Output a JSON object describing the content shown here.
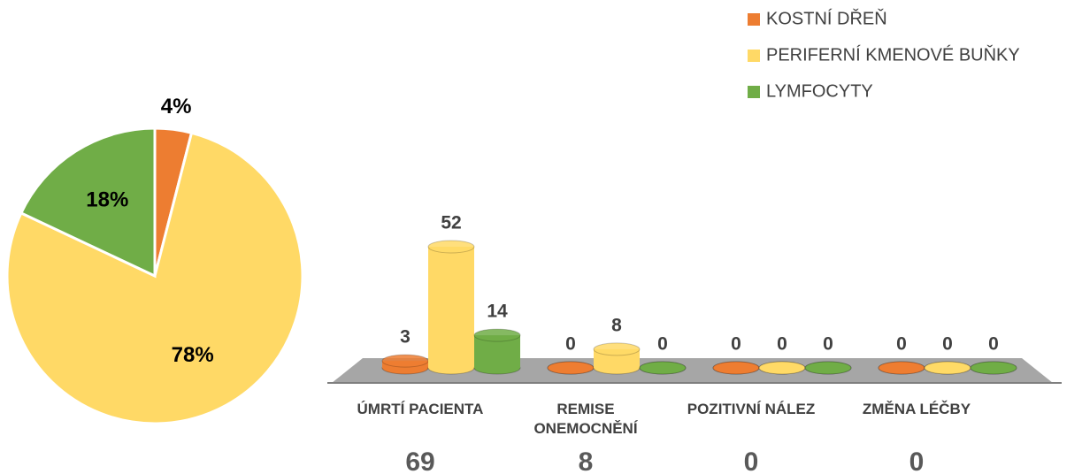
{
  "chart_data": [
    {
      "type": "pie",
      "values": [
        4,
        78,
        18
      ],
      "value_labels": [
        "4%",
        "78%",
        "18%"
      ],
      "colors": [
        "#ed7d31",
        "#ffd966",
        "#70ad47"
      ]
    },
    {
      "type": "bar3d",
      "categories": [
        "ÚMRTÍ PACIENTA",
        "REMISE ONEMOCNĚNÍ",
        "POZITIVNÍ NÁLEZ",
        "ZMĚNA LÉČBY"
      ],
      "series": [
        {
          "name": "KOSTNÍ DŘEŇ",
          "color": "#ed7d31",
          "values": [
            3,
            0,
            0,
            0
          ]
        },
        {
          "name": "PERIFERNÍ KMENOVÉ BUŇKY",
          "color": "#ffd966",
          "values": [
            52,
            8,
            0,
            0
          ]
        },
        {
          "name": "LYMFOCYTY",
          "color": "#70ad47",
          "values": [
            14,
            0,
            0,
            0
          ]
        }
      ],
      "totals": [
        69,
        8,
        0,
        0
      ]
    }
  ]
}
